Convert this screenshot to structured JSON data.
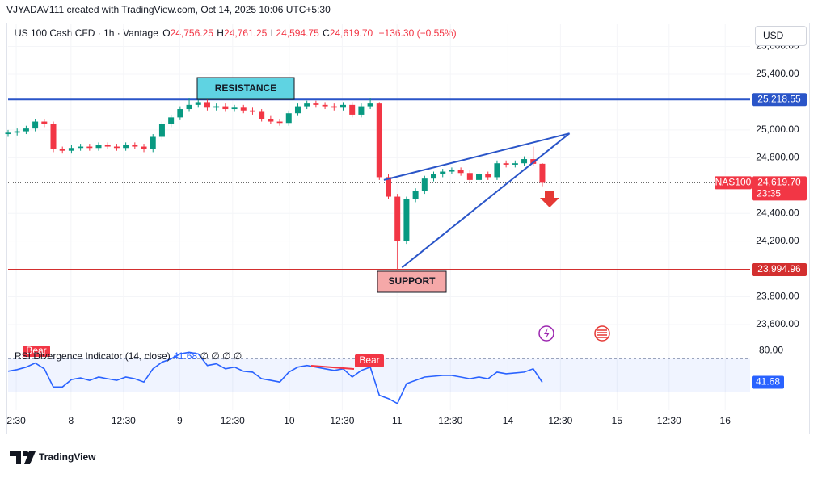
{
  "header": {
    "credit": "VJYADAV111 created with TradingView.com, Oct 14, 2025 10:06 UTC+5:30",
    "brand": "TradingView"
  },
  "chart_data": [
    {
      "type": "candlestick",
      "symbol": "US 100 Cash CFD · 1h · Vantage",
      "ohlc_legend": {
        "o_label": "O",
        "o": "24,756.25",
        "h_label": "H",
        "h": "24,761.25",
        "l_label": "L",
        "l": "24,594.75",
        "c_label": "C",
        "c": "24,619.70",
        "change": "−136.30 (−0.55%)"
      },
      "currency": "USD",
      "symbol_tag": "NAS100",
      "countdown": "23:35",
      "last_price_label": "24,619.70",
      "up_color": "#089981",
      "down_color": "#f23645",
      "grid": true,
      "annotations": [
        "RESISTANCE",
        "SUPPORT"
      ],
      "x": [
        0,
        2,
        4,
        6,
        8,
        10,
        12,
        14,
        16,
        18,
        20,
        22,
        24,
        26,
        28,
        30,
        32,
        34,
        36,
        38,
        40,
        42,
        44,
        46,
        48,
        50,
        52,
        54,
        56,
        58,
        60,
        62,
        64,
        66,
        68,
        70,
        72,
        74,
        76,
        78,
        80,
        82,
        84,
        86,
        88,
        90,
        92,
        94,
        96,
        98,
        100,
        102,
        104,
        106,
        108,
        110,
        112,
        114,
        116,
        118
      ],
      "open": [
        24970,
        24980,
        24990,
        25010,
        25060,
        25040,
        24860,
        24850,
        24870,
        24880,
        24870,
        24890,
        24880,
        24870,
        24890,
        24880,
        24860,
        24950,
        25040,
        25090,
        25150,
        25180,
        25200,
        25160,
        25170,
        25150,
        25160,
        25140,
        25130,
        25080,
        25060,
        25050,
        25120,
        25170,
        25190,
        25180,
        25170,
        25160,
        25180,
        25110,
        25170,
        25190,
        24660,
        24520,
        24200,
        24500,
        24560,
        24650,
        24680,
        24700,
        24710,
        24690,
        24640,
        24680,
        24660,
        24760,
        24750,
        24760,
        24790,
        24756.25
      ],
      "high": [
        25000,
        25010,
        25030,
        25080,
        25080,
        25060,
        24880,
        24890,
        24900,
        24900,
        24910,
        24910,
        24900,
        24910,
        24910,
        24900,
        24970,
        25060,
        25110,
        25170,
        25225,
        25220,
        25220,
        25190,
        25190,
        25180,
        25180,
        25160,
        25150,
        25100,
        25080,
        25140,
        25190,
        25210,
        25210,
        25200,
        25190,
        25200,
        25200,
        25190,
        25225,
        25200,
        24680,
        24540,
        24520,
        24580,
        24670,
        24700,
        24720,
        24730,
        24730,
        24710,
        24700,
        24700,
        24780,
        24780,
        24780,
        24810,
        24880,
        24761.25
      ],
      "low": [
        24950,
        24960,
        24970,
        24990,
        25020,
        24840,
        24830,
        24830,
        24850,
        24850,
        24850,
        24860,
        24850,
        24850,
        24860,
        24840,
        24840,
        24930,
        25020,
        25070,
        25130,
        25160,
        25140,
        25140,
        25130,
        25130,
        25120,
        25110,
        25060,
        25040,
        25030,
        25030,
        25100,
        25150,
        25160,
        25150,
        25140,
        25140,
        25090,
        25090,
        25150,
        24640,
        24500,
        23995,
        24180,
        24480,
        24540,
        24630,
        24660,
        24680,
        24670,
        24620,
        24620,
        24640,
        24640,
        24730,
        24730,
        24740,
        24740,
        24594.75
      ],
      "close": [
        24980,
        24990,
        25010,
        25060,
        25040,
        24860,
        24850,
        24870,
        24880,
        24870,
        24890,
        24880,
        24870,
        24890,
        24880,
        24860,
        24950,
        25040,
        25090,
        25150,
        25180,
        25200,
        25160,
        25170,
        25150,
        25160,
        25140,
        25130,
        25080,
        25060,
        25050,
        25120,
        25170,
        25190,
        25180,
        25170,
        25160,
        25180,
        25110,
        25170,
        25190,
        24660,
        24520,
        24200,
        24500,
        24560,
        24650,
        24680,
        24700,
        24710,
        24690,
        24640,
        24680,
        24660,
        24760,
        24750,
        24760,
        24790,
        24756,
        24619.7
      ],
      "last_price": 24619.7,
      "hlines": [
        {
          "value": 25218.55,
          "label": "25,218.55",
          "color": "#2a55c8"
        },
        {
          "value": 23994.96,
          "label": "23,994.96",
          "color": "#d32f2f"
        }
      ],
      "trendlines": [
        {
          "x": [
            83,
            124
          ],
          "y": [
            24640,
            24975
          ],
          "color": "#2a55c8"
        },
        {
          "x": [
            87,
            124
          ],
          "y": [
            24010,
            24975
          ],
          "color": "#2a55c8"
        }
      ],
      "xlim": [
        0,
        163
      ],
      "ylim": [
        23470,
        25700
      ],
      "yticks": [
        {
          "value": 23600,
          "label": "23,600.00"
        },
        {
          "value": 23800,
          "label": "23,800.00"
        },
        {
          "value": 24200,
          "label": "24,200.00"
        },
        {
          "value": 24400,
          "label": "24,400.00"
        },
        {
          "value": 24800,
          "label": "24,800.00"
        },
        {
          "value": 25000,
          "label": "25,000.00"
        },
        {
          "value": 25400,
          "label": "25,400.00"
        },
        {
          "value": 25600,
          "label": "25,600.00"
        }
      ],
      "xticks": [
        {
          "value": 1.8,
          "label": "2:30"
        },
        {
          "value": 13.9,
          "label": "8"
        },
        {
          "value": 25.5,
          "label": "12:30"
        },
        {
          "value": 37.9,
          "label": "9"
        },
        {
          "value": 49.6,
          "label": "12:30"
        },
        {
          "value": 62.1,
          "label": "10"
        },
        {
          "value": 73.8,
          "label": "12:30"
        },
        {
          "value": 85.9,
          "label": "11"
        },
        {
          "value": 97.7,
          "label": "12:30"
        },
        {
          "value": 110.4,
          "label": "14"
        },
        {
          "value": 122,
          "label": "12:30"
        },
        {
          "value": 134.5,
          "label": "15"
        },
        {
          "value": 146,
          "label": "12:30"
        },
        {
          "value": 158.4,
          "label": "16"
        }
      ]
    },
    {
      "type": "line",
      "title": "RSI Divergence Indicator (14, close)",
      "status": "∅ ∅ ∅ ∅",
      "divergence_labels": [
        "Bear",
        "Bear"
      ],
      "color": "#2962ff",
      "band": [
        30,
        70
      ],
      "band_color": "#2962ff",
      "x": [
        0,
        2,
        4,
        6,
        8,
        10,
        12,
        14,
        16,
        18,
        20,
        22,
        24,
        26,
        28,
        30,
        32,
        34,
        36,
        38,
        40,
        42,
        44,
        46,
        48,
        50,
        52,
        54,
        56,
        58,
        60,
        62,
        64,
        66,
        68,
        70,
        72,
        74,
        76,
        78,
        80,
        82,
        84,
        86,
        88,
        90,
        92,
        94,
        96,
        98,
        100,
        102,
        104,
        106,
        108,
        110,
        112,
        114,
        116,
        118
      ],
      "values": [
        55,
        57,
        60,
        65,
        58,
        36,
        36,
        45,
        47,
        44,
        48,
        46,
        44,
        48,
        46,
        42,
        58,
        66,
        70,
        76,
        78,
        76,
        62,
        64,
        58,
        60,
        55,
        54,
        46,
        44,
        42,
        54,
        60,
        62,
        60,
        58,
        56,
        58,
        48,
        56,
        60,
        26,
        22,
        16,
        40,
        44,
        48,
        49,
        50,
        50,
        48,
        46,
        48,
        46,
        54,
        52,
        53,
        54,
        58,
        41.68
      ],
      "xlim": [
        0,
        163
      ],
      "ylim": [
        10,
        88
      ],
      "yticks": [
        {
          "value": 80,
          "label": "80.00"
        }
      ]
    }
  ]
}
